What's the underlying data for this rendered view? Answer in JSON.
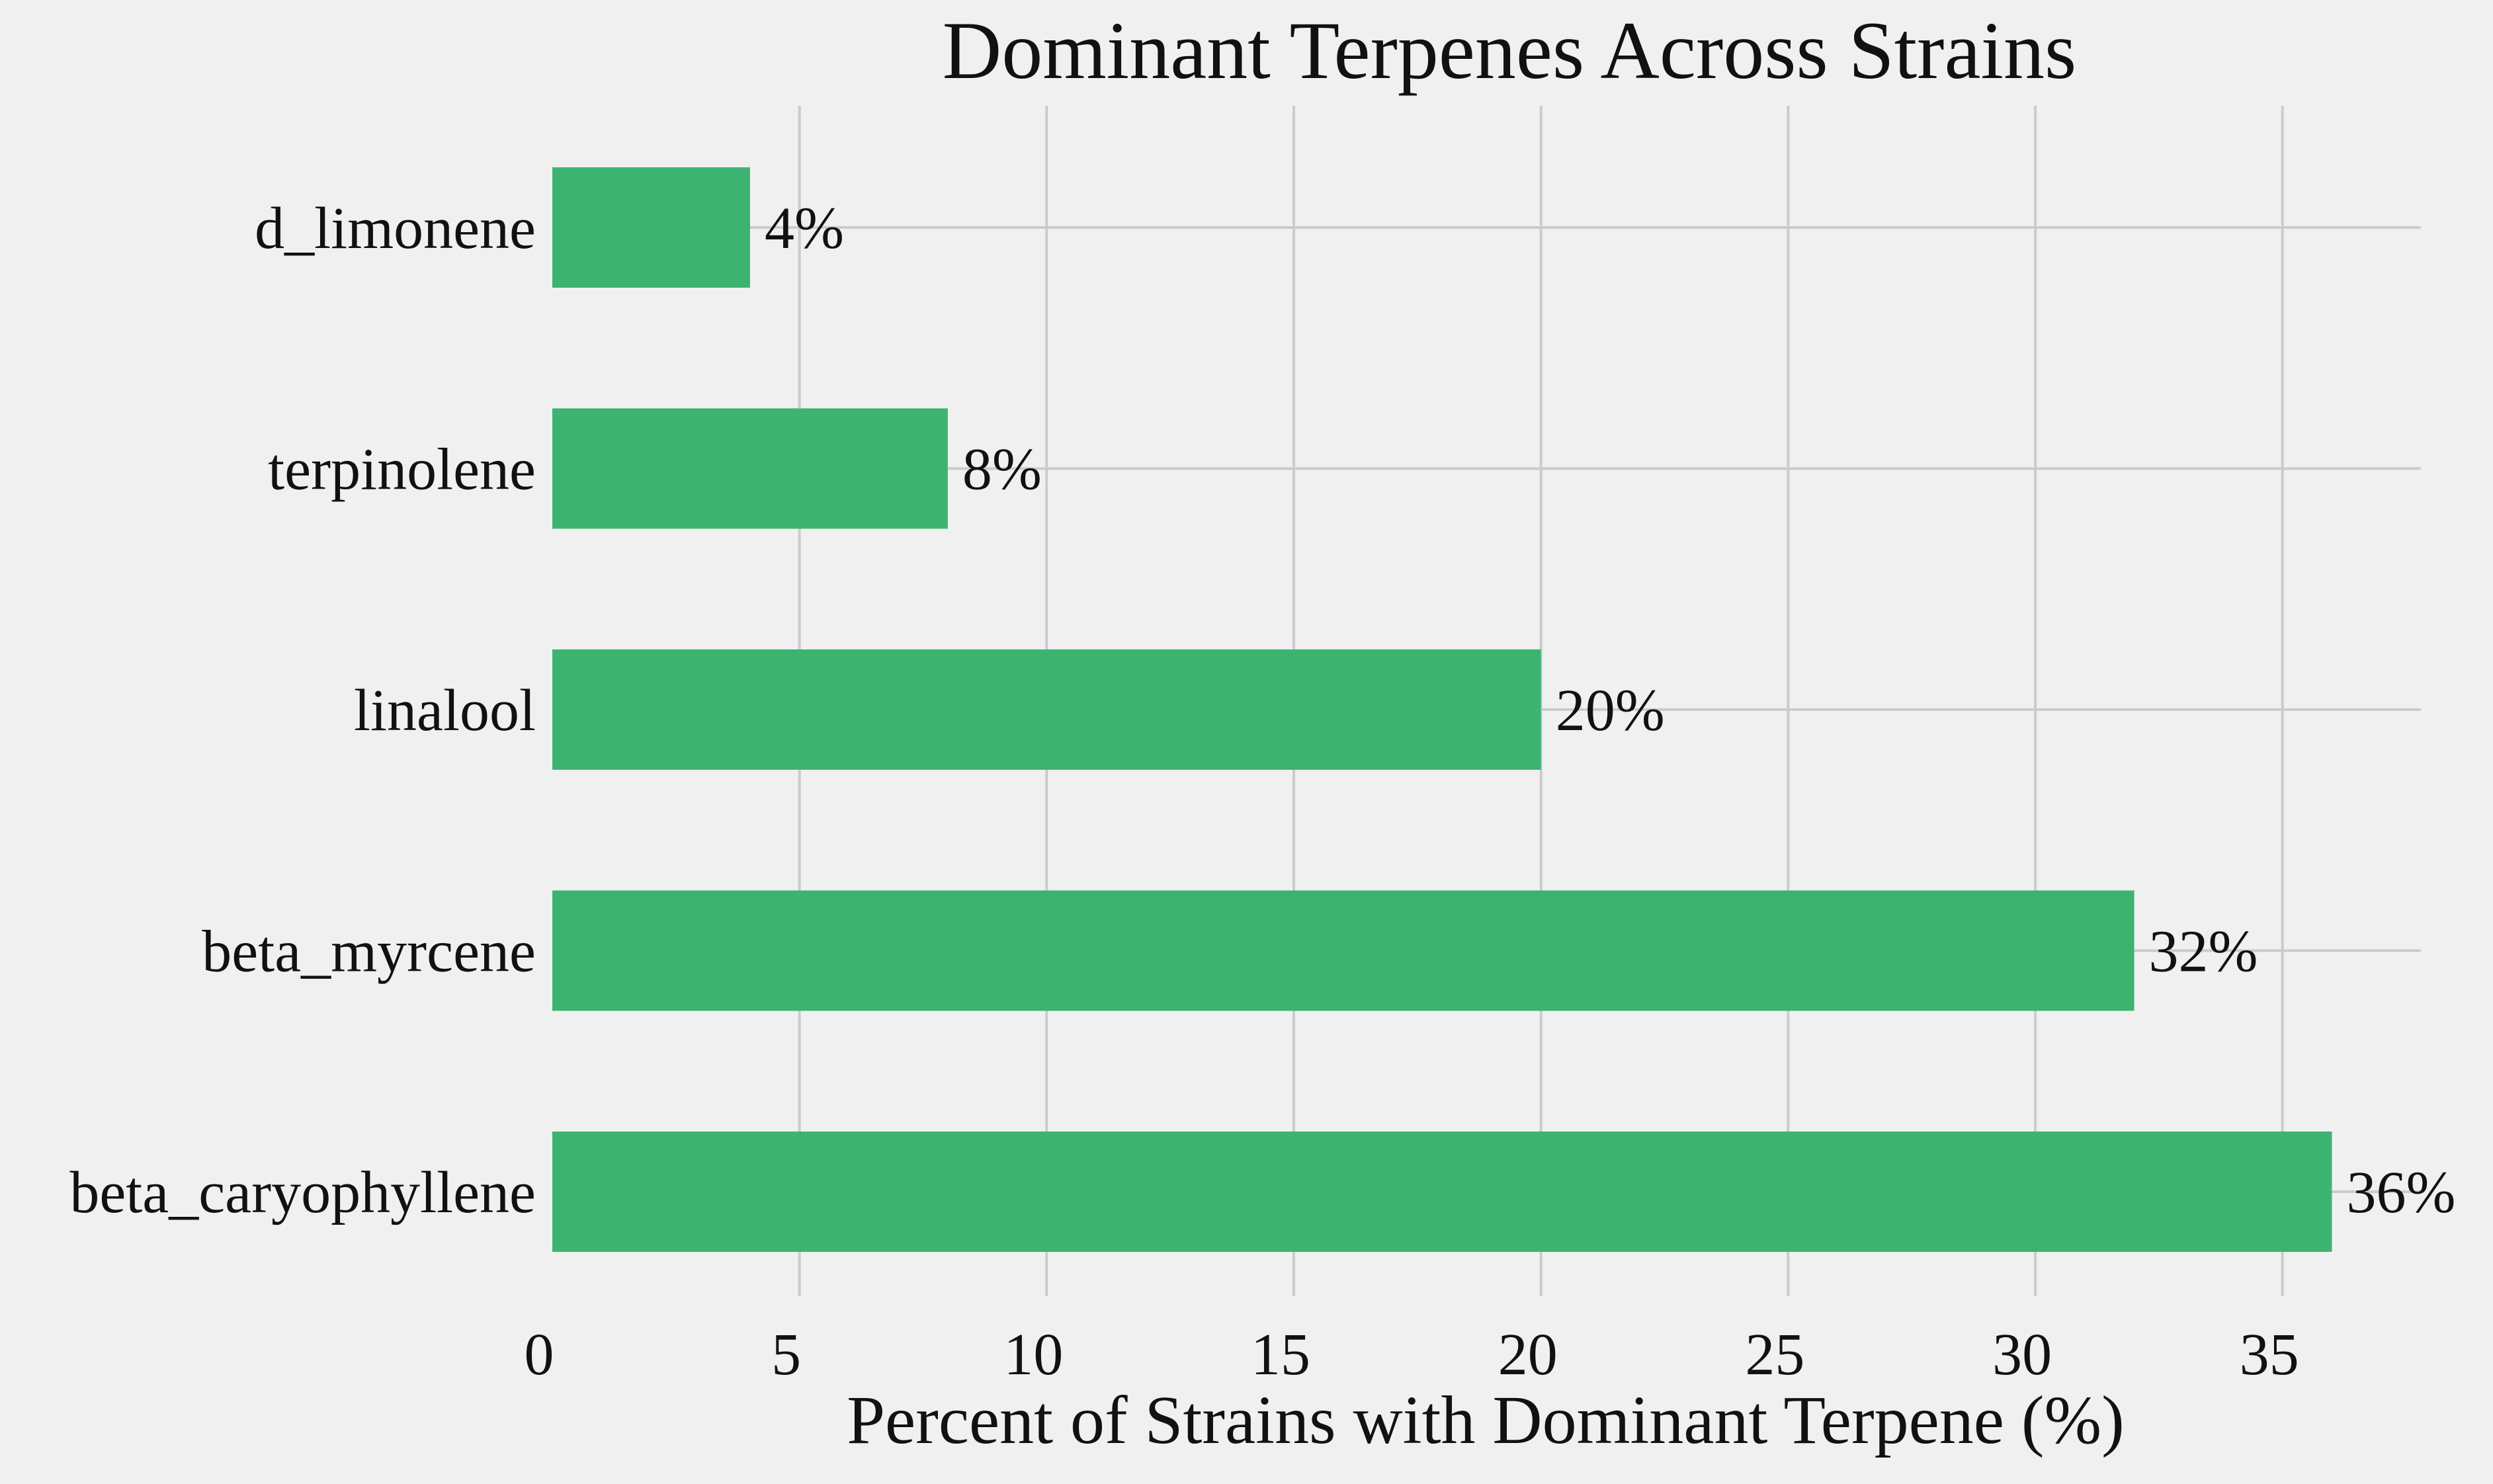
{
  "chart_data": {
    "type": "bar",
    "orientation": "horizontal",
    "title": "Dominant Terpenes Across Strains",
    "xlabel": "Percent of Strains with Dominant Terpene (%)",
    "ylabel": "",
    "categories": [
      "beta_caryophyllene",
      "beta_myrcene",
      "linalool",
      "terpinolene",
      "d_limonene"
    ],
    "values": [
      36,
      32,
      20,
      8,
      4
    ],
    "data_labels": [
      "36%",
      "32%",
      "20%",
      "8%",
      "4%"
    ],
    "xticks": [
      "0",
      "5",
      "10",
      "15",
      "20",
      "25",
      "30",
      "35"
    ],
    "xlim": [
      0,
      37.8
    ],
    "grid": true,
    "colors": {
      "bar": "#3cb371",
      "background": "#f0f0f0",
      "grid": "#cbcbcb",
      "text": "#111111"
    }
  }
}
